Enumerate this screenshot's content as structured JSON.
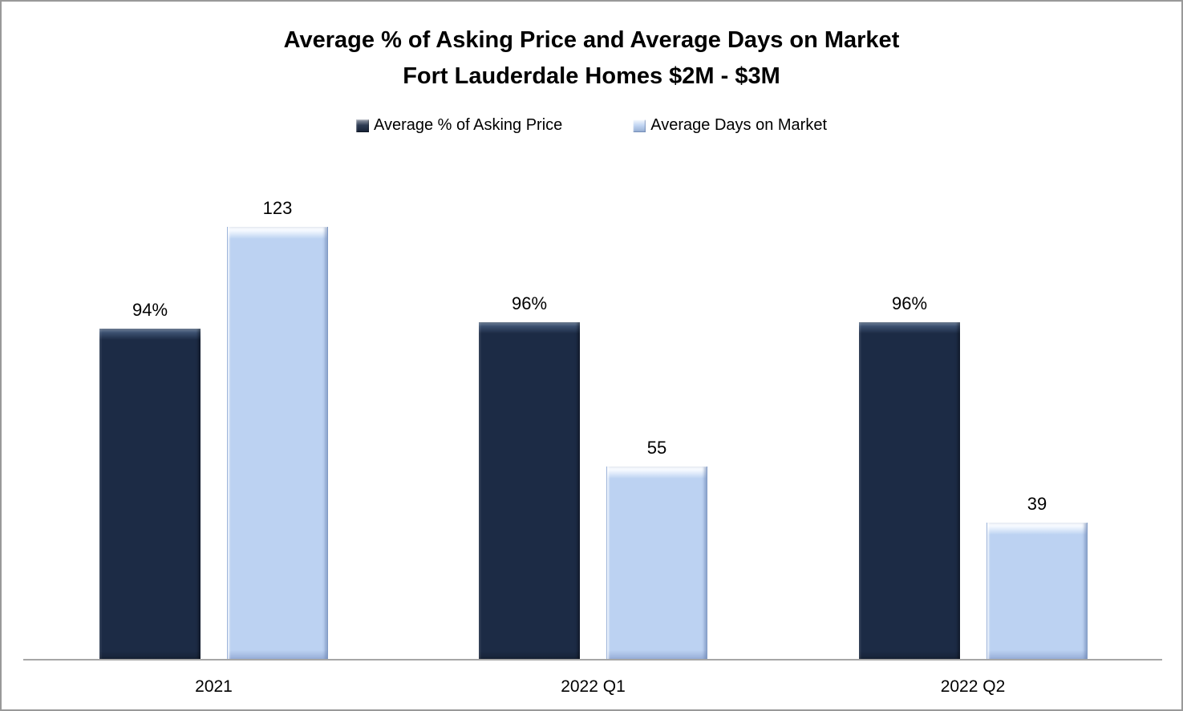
{
  "title": {
    "line1": "Average % of Asking Price and Average Days on Market",
    "line2": "Fort Lauderdale Homes $2M - $3M"
  },
  "legend": {
    "items": [
      {
        "label": "Average % of Asking Price",
        "color": "#1C2B45"
      },
      {
        "label": "Average Days on Market",
        "color": "#BCD2F2"
      }
    ]
  },
  "colors": {
    "series_dark_navy": "#1C2B45",
    "series_light_blue": "#BCD2F2",
    "axis_line": "#A6A6A6",
    "frame_border": "#999999",
    "text": "#000000",
    "background": "#FFFFFF"
  },
  "chart_data": {
    "type": "bar",
    "title": "Average % of Asking Price and Average Days on Market",
    "subtitle": "Fort Lauderdale Homes $2M - $3M",
    "categories": [
      "2021",
      "2022 Q1",
      "2022 Q2"
    ],
    "series": [
      {
        "name": "Average % of Asking Price",
        "axis": "left",
        "unit": "%",
        "values": [
          94,
          96,
          96
        ],
        "data_labels": [
          "94%",
          "96%",
          "96%"
        ],
        "color": "#1C2B45"
      },
      {
        "name": "Average Days on Market",
        "axis": "right",
        "unit": "days",
        "values": [
          123,
          55,
          39
        ],
        "data_labels": [
          "123",
          "55",
          "39"
        ],
        "color": "#BCD2F2"
      }
    ],
    "xlabel": "",
    "ylabel": "",
    "gridlines": false,
    "axes_tick_labels_visible": false,
    "legend_position": "top",
    "data_labels_visible": true
  }
}
